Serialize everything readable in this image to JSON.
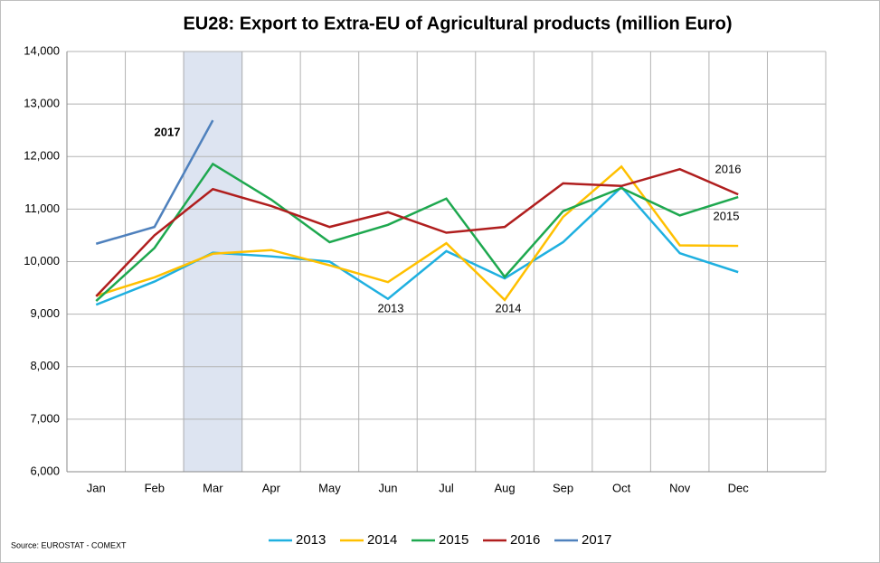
{
  "chart_data": {
    "type": "line",
    "title": "EU28: Export to Extra-EU of Agricultural products (million Euro)",
    "source": "Source: EUROSTAT - COMEXT",
    "categories": [
      "Jan",
      "Feb",
      "Mar",
      "Apr",
      "May",
      "Jun",
      "Jul",
      "Aug",
      "Sep",
      "Oct",
      "Nov",
      "Dec",
      null
    ],
    "highlight_category": "Mar",
    "ylim": [
      6000,
      14000
    ],
    "yticks": [
      {
        "value": 6000,
        "label": "6,000"
      },
      {
        "value": 7000,
        "label": "7,000"
      },
      {
        "value": 8000,
        "label": "8,000"
      },
      {
        "value": 9000,
        "label": "9,000"
      },
      {
        "value": 10000,
        "label": "10,000"
      },
      {
        "value": 11000,
        "label": "11,000"
      },
      {
        "value": 12000,
        "label": "12,000"
      },
      {
        "value": 13000,
        "label": "13,000"
      },
      {
        "value": 14000,
        "label": "14,000"
      }
    ],
    "grid": true,
    "legend": "bottom",
    "series": [
      {
        "name": "2013",
        "color": "#1fb0e0",
        "values": [
          9180,
          9620,
          10170,
          10100,
          10000,
          9290,
          10200,
          9680,
          10370,
          11420,
          10160,
          9800,
          null
        ]
      },
      {
        "name": "2014",
        "color": "#ffc000",
        "values": [
          9350,
          9700,
          10150,
          10220,
          9930,
          9610,
          10350,
          9270,
          10850,
          11810,
          10310,
          10300,
          null
        ]
      },
      {
        "name": "2015",
        "color": "#1ea84f",
        "values": [
          9250,
          10260,
          11860,
          11180,
          10370,
          10700,
          11200,
          9710,
          10960,
          11400,
          10880,
          11230,
          null
        ]
      },
      {
        "name": "2016",
        "color": "#b01e1e",
        "values": [
          9340,
          10500,
          11380,
          11060,
          10660,
          10940,
          10550,
          10660,
          11490,
          11440,
          11760,
          11280,
          null
        ]
      },
      {
        "name": "2017",
        "color": "#4f81bd",
        "values": [
          10340,
          10660,
          12690,
          null,
          null,
          null,
          null,
          null,
          null,
          null,
          null,
          null,
          null
        ]
      }
    ],
    "annotations": [
      "2017",
      "2013",
      "2014",
      "2016",
      "2015"
    ]
  }
}
